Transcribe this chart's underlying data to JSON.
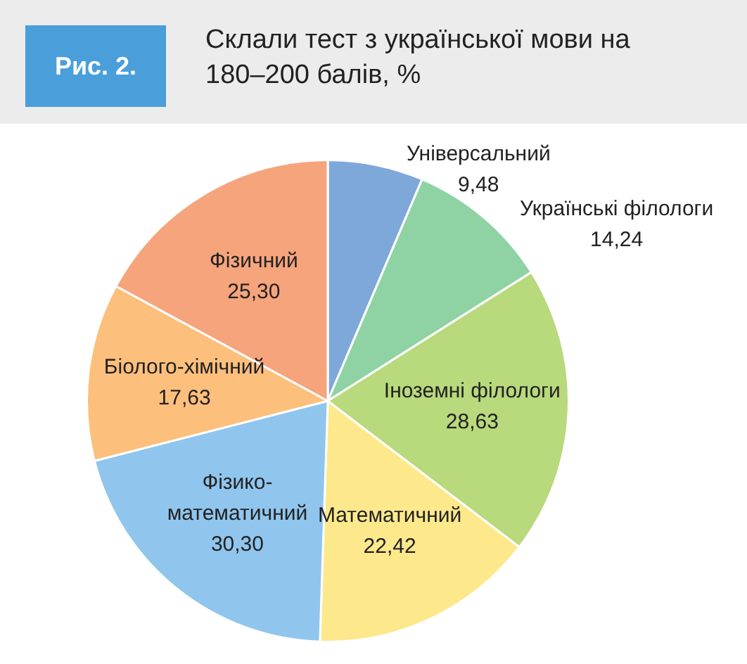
{
  "chart_data": {
    "type": "pie",
    "title": "Склали тест з української мови на 180–200 балів, %",
    "annotations": [
      "Рис. 2."
    ],
    "categories": [
      "Універсальний",
      "Українські філологи",
      "Іноземні філологи",
      "Математичний",
      "Фізико-математичний",
      "Біолого-хімічний",
      "Фізичний"
    ],
    "values": [
      9.48,
      14.24,
      28.63,
      22.42,
      30.3,
      17.63,
      25.3
    ],
    "value_labels": [
      "9,48",
      "14,24",
      "28,63",
      "22,42",
      "30,30",
      "17,63",
      "25,30"
    ],
    "colors": [
      "#7fa8da",
      "#8fd3a4",
      "#b8d97c",
      "#fde98c",
      "#90c6ee",
      "#fcbf7c",
      "#f6a47c"
    ],
    "legend": false
  }
}
